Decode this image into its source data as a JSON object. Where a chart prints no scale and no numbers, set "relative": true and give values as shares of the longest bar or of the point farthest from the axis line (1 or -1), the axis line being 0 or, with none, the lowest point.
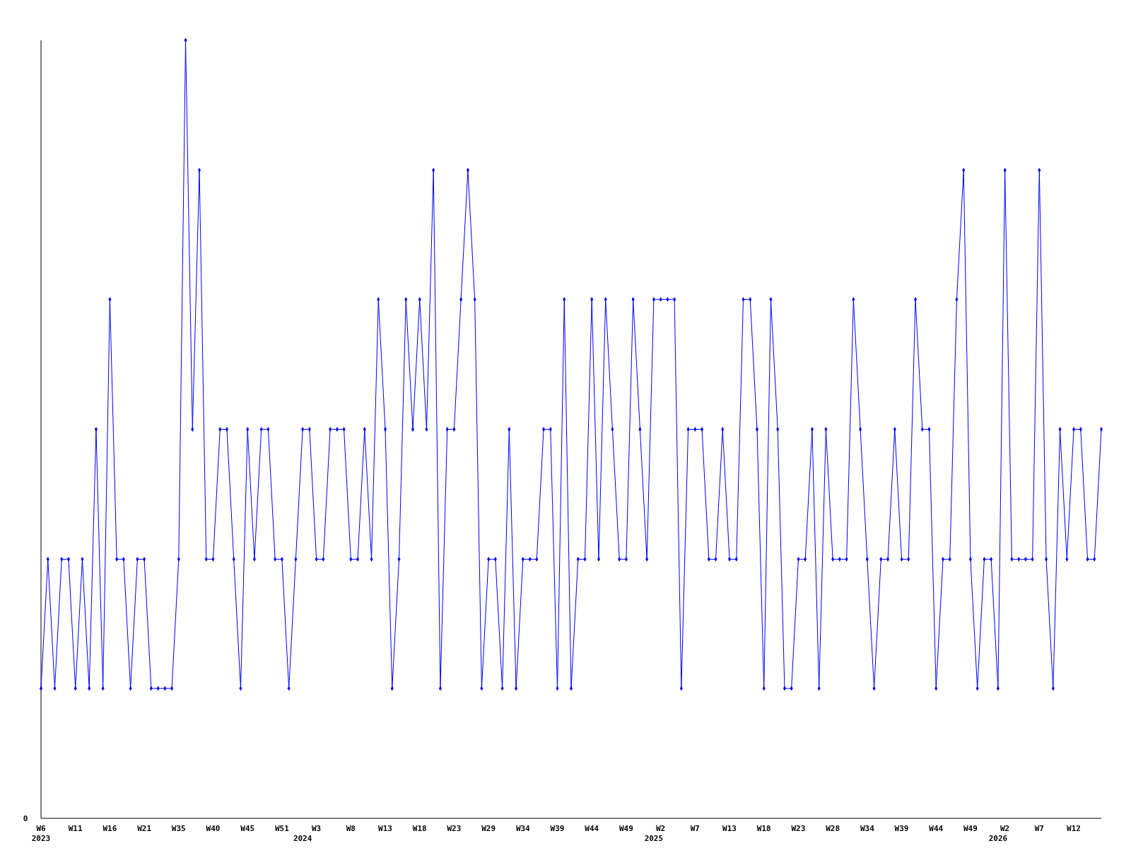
{
  "chart_data": {
    "type": "line",
    "relative": true,
    "color": "#0000ff",
    "marker": "diamond",
    "line_style": "solid",
    "annotations": [
      "0"
    ],
    "categories": [
      "W6\n2023",
      null,
      null,
      null,
      null,
      "W11",
      null,
      null,
      null,
      null,
      "W16",
      null,
      null,
      null,
      null,
      "W21",
      null,
      null,
      null,
      null,
      "W35",
      null,
      null,
      null,
      null,
      "W40",
      null,
      null,
      null,
      null,
      "W45",
      null,
      null,
      null,
      null,
      "W51",
      null,
      null,
      "\n2024",
      null,
      "W3",
      null,
      null,
      null,
      null,
      "W8",
      null,
      null,
      null,
      null,
      "W13",
      null,
      null,
      null,
      null,
      "W18",
      null,
      null,
      null,
      null,
      "W23",
      null,
      null,
      null,
      null,
      "W29",
      null,
      null,
      null,
      null,
      "W34",
      null,
      null,
      null,
      null,
      "W39",
      null,
      null,
      null,
      null,
      "W44",
      null,
      null,
      null,
      null,
      "W49",
      null,
      null,
      null,
      "\n2025",
      "W2",
      null,
      null,
      null,
      null,
      "W7",
      null,
      null,
      null,
      null,
      "W13",
      null,
      null,
      null,
      null,
      "W18",
      null,
      null,
      null,
      null,
      "W23",
      null,
      null,
      null,
      null,
      "W28",
      null,
      null,
      null,
      null,
      "W34",
      null,
      null,
      null,
      null,
      "W39",
      null,
      null,
      null,
      null,
      "W44",
      null,
      null,
      null,
      null,
      "W49",
      null,
      null,
      null,
      "\n2026",
      "W2",
      null,
      null,
      null,
      null,
      "W7",
      null,
      null,
      null,
      null,
      "W12",
      null,
      null,
      null,
      null
    ],
    "values": [
      0.167,
      0.333,
      0.167,
      0.333,
      0.333,
      0.167,
      0.333,
      0.167,
      0.5,
      0.167,
      0.667,
      0.333,
      0.333,
      0.167,
      0.333,
      0.333,
      0.167,
      0.167,
      0.167,
      0.167,
      0.333,
      1,
      0.5,
      0.833,
      0.333,
      0.333,
      0.5,
      0.5,
      0.333,
      0.167,
      0.5,
      0.333,
      0.5,
      0.5,
      0.333,
      0.333,
      0.167,
      0.333,
      0.5,
      0.5,
      0.333,
      0.333,
      0.5,
      0.5,
      0.5,
      0.333,
      0.333,
      0.5,
      0.333,
      0.667,
      0.5,
      0.167,
      0.333,
      0.667,
      0.5,
      0.667,
      0.5,
      0.833,
      0.167,
      0.5,
      0.5,
      0.667,
      0.833,
      0.667,
      0.167,
      0.333,
      0.333,
      0.167,
      0.5,
      0.167,
      0.333,
      0.333,
      0.333,
      0.5,
      0.5,
      0.167,
      0.667,
      0.167,
      0.333,
      0.333,
      0.667,
      0.333,
      0.667,
      0.5,
      0.333,
      0.333,
      0.667,
      0.5,
      0.333,
      0.667,
      0.667,
      0.667,
      0.667,
      0.167,
      0.5,
      0.5,
      0.5,
      0.333,
      0.333,
      0.5,
      0.333,
      0.333,
      0.667,
      0.667,
      0.5,
      0.167,
      0.667,
      0.5,
      0.167,
      0.167,
      0.333,
      0.333,
      0.5,
      0.167,
      0.5,
      0.333,
      0.333,
      0.333,
      0.667,
      0.5,
      0.333,
      0.167,
      0.333,
      0.333,
      0.5,
      0.333,
      0.333,
      0.667,
      0.5,
      0.5,
      0.167,
      0.333,
      0.333,
      0.667,
      0.833,
      0.333,
      0.167,
      0.333,
      0.333,
      0.167,
      0.833,
      0.333,
      0.333,
      0.333,
      0.333,
      0.833,
      0.333,
      0.167,
      0.5,
      0.333,
      0.5,
      0.5,
      0.333,
      0.333,
      0.5
    ]
  }
}
